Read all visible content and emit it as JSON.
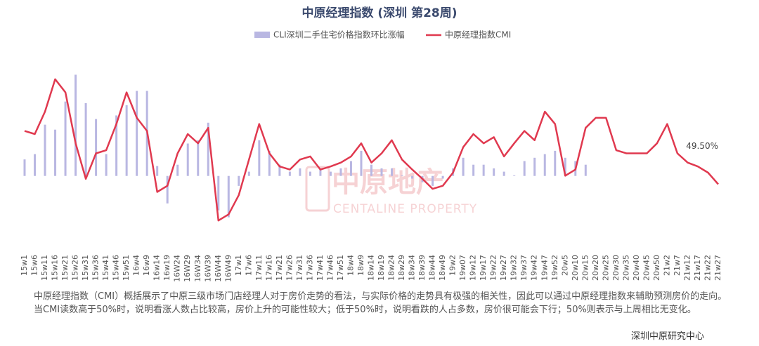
{
  "chart_data": {
    "type": "combo",
    "title": "中原经理指数 (深圳 第28周)",
    "categories": [
      "15w1",
      "15w6",
      "15w11",
      "15w16",
      "15w21",
      "15w26",
      "15w31",
      "15w36",
      "15w41",
      "15w46",
      "15w51",
      "16w4",
      "16w9",
      "16w14",
      "16w19",
      "16W24",
      "16W29",
      "16W34",
      "16W39",
      "16W44",
      "16W49",
      "17w1",
      "17w6",
      "17w11",
      "17w16",
      "17w21",
      "17w26",
      "17w31",
      "17w36",
      "17w41",
      "17w46",
      "17w51",
      "18w4",
      "18w9",
      "18w14",
      "18w19",
      "18w24",
      "18w29",
      "18w34",
      "18w39",
      "18w44",
      "18w49",
      "19w2",
      "19w07",
      "19w12",
      "19w17",
      "19w22",
      "19w27",
      "19w32",
      "19w37",
      "19w42",
      "19w47",
      "19w52",
      "20w5",
      "20w10",
      "20w15",
      "20w20",
      "20w25",
      "20w30",
      "20w35",
      "20w40",
      "20w45",
      "20w50",
      "21w2",
      "21w7",
      "21w12",
      "21w17",
      "21w22",
      "21w27"
    ],
    "series": [
      {
        "name": "CLI深圳二手住宅价格指数环比涨幅",
        "type": "bar",
        "axis": "y2",
        "color": "#b9b7e2",
        "values": [
          0.5,
          0.66,
          1.55,
          1.4,
          2.25,
          3.06,
          2.2,
          1.72,
          0.66,
          1.83,
          2.14,
          2.57,
          2.57,
          0.3,
          -0.83,
          0.34,
          0.98,
          1.08,
          1.61,
          -1.04,
          -1.25,
          -0.3,
          0.13,
          1.08,
          0.76,
          0.34,
          0.13,
          0.23,
          0.13,
          0.23,
          0.13,
          0.23,
          0.45,
          0.76,
          0.34,
          0.23,
          0.23,
          0.02,
          -0.08,
          -0.19,
          -0.3,
          -0.08,
          0.23,
          0.55,
          0.34,
          0.34,
          0.23,
          0.13,
          0.02,
          0.45,
          0.55,
          0.66,
          0.76,
          0.55,
          0.45,
          0.34,
          null,
          null,
          null,
          null,
          null,
          null,
          null,
          null,
          null,
          null,
          null,
          null,
          null
        ]
      },
      {
        "name": "中原经理指数CMI",
        "type": "line",
        "color": "#e0394f",
        "values": [
          56.4,
          56.0,
          58.9,
          63.1,
          61.4,
          54.8,
          50.2,
          53.5,
          53.9,
          57.3,
          61.4,
          58.1,
          56.4,
          48.5,
          49.3,
          53.5,
          56.0,
          54.8,
          56.8,
          44.8,
          45.6,
          48.1,
          52.7,
          57.3,
          53.5,
          51.8,
          51.4,
          52.7,
          53.1,
          51.4,
          51.8,
          52.3,
          53.1,
          54.8,
          52.3,
          53.5,
          55.2,
          52.7,
          51.4,
          50.2,
          48.9,
          49.3,
          51.0,
          54.3,
          56.0,
          54.8,
          55.6,
          53.1,
          54.8,
          56.4,
          55.2,
          58.9,
          57.3,
          50.6,
          51.4,
          56.8,
          58.1,
          58.1,
          53.9,
          53.5,
          53.5,
          53.5,
          54.8,
          57.3,
          53.5,
          52.3,
          51.8,
          51.0,
          49.5
        ]
      }
    ],
    "annotations": [
      {
        "text": "49.50%"
      }
    ],
    "ylim": [
      42,
      66
    ],
    "y2lim": [
      -2,
      3.6
    ],
    "watermark": {
      "cn": "中原地产",
      "en": "CENTALINE PROPERTY"
    },
    "note": "中原经理指数（CMI）概括展示了中原三级市场门店经理人对于房价走势的看法，与实际价格的走势具有极强的相关性，因此可以通过中原经理指数来辅助预测房价的走向。当CMI读数高于50%时，说明看涨人数占比较高，房价上升的可能性较大；低于50%时，说明看跌的人占多数，房价很可能会下行；50%则表示与上周相比无变化。",
    "source": "深圳中原研究中心"
  }
}
